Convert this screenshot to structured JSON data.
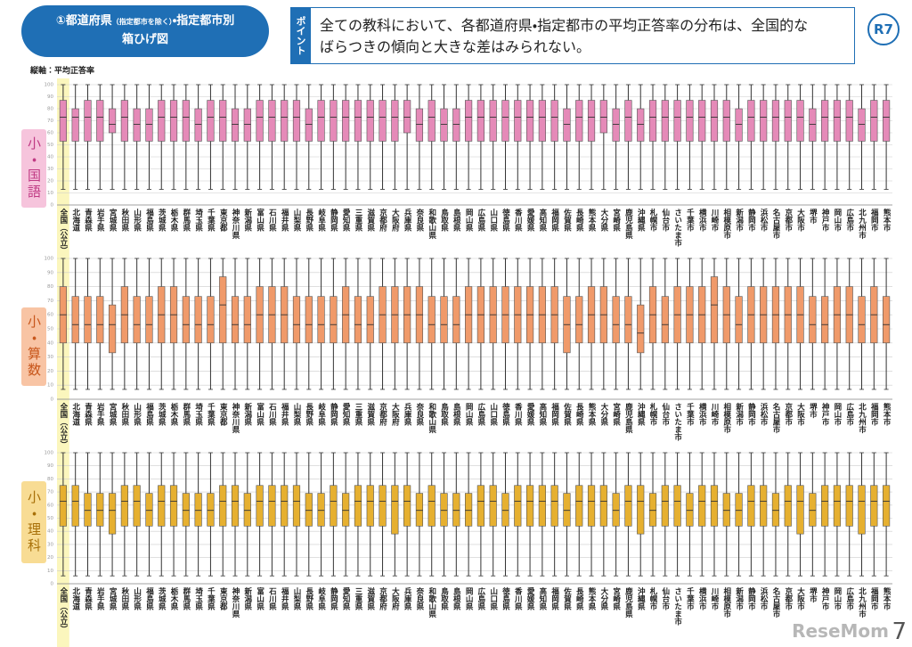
{
  "header": {
    "title_parts": [
      "①都道府県",
      "（指定都市を除く）",
      "・指定都市別"
    ],
    "title_line2": "箱ひげ図",
    "point_tag": "ポイント",
    "point_text": [
      "全ての教科において、各都道府県・指定都市の平均正答率の分布は、全国的な",
      "ばらつきの傾向と大きな差はみられない。"
    ],
    "badge": "R7"
  },
  "y_axis_label": "縦軸：平均正答率",
  "page_number": "7",
  "watermark": "ReseMom",
  "chart_data": [
    {
      "type": "box",
      "label": "小・国語",
      "color": "#e58ab8",
      "categories": [
        "全国（公立）",
        "北海道",
        "青森県",
        "岩手県",
        "宮城県",
        "秋田県",
        "山形県",
        "福島県",
        "茨城県",
        "栃木県",
        "群馬県",
        "埼玉県",
        "千葉県",
        "東京都",
        "神奈川県",
        "新潟県",
        "富山県",
        "石川県",
        "福井県",
        "山梨県",
        "長野県",
        "岐阜県",
        "静岡県",
        "愛知県",
        "三重県",
        "滋賀県",
        "京都府",
        "大阪府",
        "兵庫県",
        "奈良県",
        "和歌山県",
        "鳥取県",
        "島根県",
        "岡山県",
        "広島県",
        "山口県",
        "徳島県",
        "香川県",
        "愛媛県",
        "高知県",
        "福岡県",
        "佐賀県",
        "長崎県",
        "熊本県",
        "大分県",
        "宮崎県",
        "鹿児島県",
        "沖縄県",
        "札幌市",
        "仙台市",
        "さいたま市",
        "千葉市",
        "横浜市",
        "川崎市",
        "相模原市",
        "新潟市",
        "静岡市",
        "浜松市",
        "名古屋市",
        "京都市",
        "大阪市",
        "堺市",
        "神戸市",
        "岡山市",
        "広島市",
        "北九州市",
        "福岡市",
        "熊本市"
      ],
      "min": [
        13,
        13,
        13,
        13,
        13,
        13,
        13,
        13,
        13,
        13,
        13,
        13,
        13,
        13,
        13,
        13,
        13,
        13,
        13,
        13,
        13,
        13,
        13,
        13,
        13,
        13,
        13,
        13,
        13,
        13,
        13,
        13,
        13,
        13,
        13,
        13,
        13,
        13,
        13,
        13,
        13,
        13,
        13,
        13,
        13,
        13,
        13,
        13,
        13,
        13,
        13,
        13,
        13,
        13,
        13,
        13,
        13,
        13,
        13,
        13,
        13,
        13,
        13,
        13,
        13,
        13,
        13,
        13
      ],
      "q1": [
        53,
        53,
        53,
        53,
        60,
        53,
        53,
        53,
        53,
        53,
        53,
        53,
        53,
        53,
        53,
        53,
        53,
        53,
        53,
        53,
        53,
        53,
        53,
        53,
        53,
        53,
        53,
        53,
        60,
        53,
        53,
        53,
        53,
        53,
        53,
        53,
        53,
        53,
        53,
        53,
        53,
        53,
        53,
        53,
        60,
        53,
        53,
        53,
        53,
        53,
        53,
        53,
        53,
        53,
        53,
        53,
        53,
        53,
        53,
        53,
        53,
        53,
        53,
        53,
        53,
        53,
        53,
        53
      ],
      "median": [
        73,
        73,
        73,
        73,
        67,
        73,
        67,
        67,
        73,
        73,
        73,
        67,
        73,
        73,
        67,
        67,
        73,
        73,
        73,
        73,
        67,
        73,
        73,
        73,
        73,
        73,
        73,
        73,
        73,
        67,
        73,
        67,
        67,
        73,
        73,
        73,
        73,
        73,
        73,
        73,
        73,
        67,
        73,
        73,
        73,
        67,
        73,
        67,
        73,
        73,
        73,
        73,
        73,
        73,
        73,
        67,
        73,
        73,
        73,
        73,
        73,
        67,
        73,
        73,
        73,
        67,
        73,
        73
      ],
      "q3": [
        87,
        80,
        87,
        87,
        80,
        87,
        80,
        80,
        87,
        87,
        87,
        80,
        87,
        87,
        80,
        80,
        87,
        87,
        87,
        87,
        80,
        87,
        87,
        87,
        87,
        87,
        87,
        87,
        87,
        80,
        87,
        80,
        80,
        87,
        87,
        87,
        87,
        87,
        87,
        87,
        87,
        80,
        87,
        87,
        87,
        80,
        87,
        80,
        87,
        87,
        87,
        87,
        87,
        87,
        87,
        80,
        87,
        87,
        87,
        87,
        87,
        80,
        87,
        87,
        87,
        80,
        87,
        87
      ],
      "max": [
        100,
        100,
        100,
        100,
        100,
        100,
        100,
        100,
        100,
        100,
        100,
        100,
        100,
        100,
        100,
        100,
        100,
        100,
        100,
        100,
        100,
        100,
        100,
        100,
        100,
        100,
        100,
        100,
        100,
        100,
        100,
        100,
        100,
        100,
        100,
        100,
        100,
        100,
        100,
        100,
        100,
        100,
        100,
        100,
        100,
        100,
        100,
        100,
        100,
        100,
        100,
        100,
        100,
        100,
        100,
        100,
        100,
        100,
        100,
        100,
        100,
        100,
        100,
        100,
        100,
        100,
        100,
        100
      ],
      "ylim": [
        0,
        100
      ],
      "yticks": [
        0,
        10,
        20,
        30,
        40,
        50,
        60,
        70,
        80,
        90,
        100
      ],
      "grid": true
    },
    {
      "type": "box",
      "label": "小・算数",
      "color": "#f09a6a",
      "categories": [
        "全国（公立）",
        "北海道",
        "青森県",
        "岩手県",
        "宮城県",
        "秋田県",
        "山形県",
        "福島県",
        "茨城県",
        "栃木県",
        "群馬県",
        "埼玉県",
        "千葉県",
        "東京都",
        "神奈川県",
        "新潟県",
        "富山県",
        "石川県",
        "福井県",
        "山梨県",
        "長野県",
        "岐阜県",
        "静岡県",
        "愛知県",
        "三重県",
        "滋賀県",
        "京都府",
        "大阪府",
        "兵庫県",
        "奈良県",
        "和歌山県",
        "鳥取県",
        "島根県",
        "岡山県",
        "広島県",
        "山口県",
        "徳島県",
        "香川県",
        "愛媛県",
        "高知県",
        "福岡県",
        "佐賀県",
        "長崎県",
        "熊本県",
        "大分県",
        "宮崎県",
        "鹿児島県",
        "沖縄県",
        "札幌市",
        "仙台市",
        "さいたま市",
        "千葉市",
        "横浜市",
        "川崎市",
        "相模原市",
        "新潟市",
        "静岡市",
        "浜松市",
        "名古屋市",
        "京都市",
        "大阪市",
        "堺市",
        "神戸市",
        "岡山市",
        "広島市",
        "北九州市",
        "福岡市",
        "熊本市"
      ],
      "min": [
        7,
        7,
        7,
        7,
        7,
        7,
        7,
        7,
        7,
        7,
        7,
        7,
        7,
        7,
        7,
        7,
        7,
        7,
        7,
        7,
        7,
        7,
        7,
        7,
        7,
        7,
        7,
        7,
        7,
        7,
        7,
        7,
        7,
        7,
        7,
        7,
        7,
        7,
        7,
        7,
        7,
        7,
        7,
        7,
        7,
        7,
        7,
        7,
        7,
        7,
        7,
        7,
        7,
        7,
        7,
        7,
        7,
        7,
        7,
        7,
        7,
        7,
        7,
        7,
        7,
        7,
        7,
        7
      ],
      "q1": [
        40,
        40,
        40,
        40,
        33,
        40,
        40,
        40,
        40,
        40,
        40,
        40,
        40,
        40,
        40,
        40,
        40,
        40,
        40,
        40,
        40,
        40,
        40,
        40,
        40,
        40,
        40,
        40,
        40,
        40,
        40,
        40,
        40,
        40,
        40,
        40,
        40,
        40,
        40,
        40,
        40,
        33,
        40,
        40,
        40,
        40,
        40,
        33,
        40,
        40,
        40,
        40,
        40,
        40,
        40,
        40,
        40,
        40,
        40,
        40,
        40,
        40,
        40,
        40,
        40,
        40,
        40,
        40
      ],
      "median": [
        60,
        53,
        53,
        53,
        53,
        60,
        53,
        53,
        60,
        60,
        53,
        53,
        53,
        67,
        53,
        53,
        60,
        60,
        60,
        53,
        53,
        53,
        53,
        60,
        53,
        53,
        60,
        60,
        60,
        60,
        53,
        53,
        53,
        60,
        60,
        60,
        60,
        60,
        60,
        60,
        60,
        53,
        53,
        60,
        60,
        53,
        53,
        47,
        60,
        53,
        60,
        60,
        60,
        67,
        60,
        53,
        60,
        60,
        60,
        60,
        60,
        53,
        53,
        60,
        60,
        53,
        60,
        53
      ],
      "q3": [
        80,
        73,
        73,
        73,
        67,
        80,
        73,
        73,
        80,
        80,
        73,
        73,
        73,
        87,
        73,
        73,
        80,
        80,
        80,
        73,
        73,
        73,
        73,
        80,
        73,
        73,
        80,
        80,
        80,
        80,
        73,
        73,
        73,
        80,
        80,
        80,
        80,
        80,
        80,
        80,
        80,
        73,
        73,
        80,
        80,
        73,
        73,
        67,
        80,
        73,
        80,
        80,
        80,
        87,
        80,
        73,
        80,
        80,
        80,
        80,
        80,
        73,
        73,
        80,
        80,
        73,
        80,
        73
      ],
      "max": [
        100,
        100,
        100,
        100,
        100,
        100,
        100,
        100,
        100,
        100,
        100,
        100,
        100,
        100,
        100,
        100,
        100,
        100,
        100,
        100,
        100,
        100,
        100,
        100,
        100,
        100,
        100,
        100,
        100,
        100,
        100,
        100,
        100,
        100,
        100,
        100,
        100,
        100,
        100,
        100,
        100,
        100,
        100,
        100,
        100,
        100,
        100,
        100,
        100,
        100,
        100,
        100,
        100,
        100,
        100,
        100,
        100,
        100,
        100,
        100,
        100,
        100,
        100,
        100,
        100,
        100,
        100,
        100
      ],
      "ylim": [
        0,
        100
      ],
      "yticks": [
        0,
        10,
        20,
        30,
        40,
        50,
        60,
        70,
        80,
        90,
        100
      ],
      "grid": true
    },
    {
      "type": "box",
      "label": "小・理科",
      "color": "#e6b030",
      "categories": [
        "全国（公立）",
        "北海道",
        "青森県",
        "岩手県",
        "宮城県",
        "秋田県",
        "山形県",
        "福島県",
        "茨城県",
        "栃木県",
        "群馬県",
        "埼玉県",
        "千葉県",
        "東京都",
        "神奈川県",
        "新潟県",
        "富山県",
        "石川県",
        "福井県",
        "山梨県",
        "長野県",
        "岐阜県",
        "静岡県",
        "愛知県",
        "三重県",
        "滋賀県",
        "京都府",
        "大阪府",
        "兵庫県",
        "奈良県",
        "和歌山県",
        "鳥取県",
        "島根県",
        "岡山県",
        "広島県",
        "山口県",
        "徳島県",
        "香川県",
        "愛媛県",
        "高知県",
        "福岡県",
        "佐賀県",
        "長崎県",
        "熊本県",
        "大分県",
        "宮崎県",
        "鹿児島県",
        "沖縄県",
        "札幌市",
        "仙台市",
        "さいたま市",
        "千葉市",
        "横浜市",
        "川崎市",
        "相模原市",
        "新潟市",
        "静岡市",
        "浜松市",
        "名古屋市",
        "京都市",
        "大阪市",
        "堺市",
        "神戸市",
        "岡山市",
        "広島市",
        "北九州市",
        "福岡市",
        "熊本市"
      ],
      "min": [
        6,
        6,
        6,
        6,
        6,
        6,
        6,
        6,
        6,
        6,
        6,
        6,
        6,
        6,
        6,
        6,
        6,
        6,
        6,
        6,
        6,
        6,
        6,
        6,
        6,
        6,
        6,
        6,
        6,
        6,
        6,
        6,
        6,
        6,
        6,
        6,
        6,
        6,
        6,
        6,
        6,
        6,
        6,
        6,
        6,
        6,
        6,
        6,
        6,
        6,
        6,
        6,
        6,
        6,
        6,
        6,
        6,
        6,
        6,
        6,
        6,
        6,
        6,
        6,
        6,
        6,
        6,
        6
      ],
      "q1": [
        44,
        44,
        44,
        44,
        38,
        44,
        44,
        44,
        44,
        44,
        44,
        44,
        44,
        44,
        44,
        44,
        44,
        44,
        44,
        44,
        44,
        44,
        44,
        44,
        44,
        44,
        44,
        38,
        44,
        44,
        44,
        44,
        44,
        44,
        44,
        44,
        44,
        44,
        44,
        44,
        44,
        44,
        44,
        44,
        44,
        44,
        44,
        38,
        44,
        44,
        44,
        44,
        44,
        44,
        44,
        44,
        44,
        44,
        44,
        44,
        38,
        44,
        44,
        44,
        44,
        38,
        44,
        44
      ],
      "median": [
        63,
        63,
        56,
        56,
        56,
        63,
        63,
        56,
        63,
        63,
        56,
        56,
        56,
        63,
        63,
        56,
        63,
        63,
        63,
        63,
        56,
        56,
        63,
        56,
        63,
        63,
        63,
        63,
        63,
        56,
        63,
        56,
        56,
        56,
        63,
        63,
        56,
        63,
        63,
        63,
        63,
        56,
        63,
        63,
        63,
        56,
        63,
        63,
        56,
        63,
        63,
        56,
        63,
        63,
        56,
        56,
        63,
        63,
        56,
        63,
        63,
        56,
        63,
        63,
        63,
        63,
        63,
        63
      ],
      "q3": [
        75,
        75,
        69,
        69,
        69,
        75,
        75,
        69,
        75,
        75,
        69,
        69,
        69,
        75,
        75,
        69,
        75,
        75,
        75,
        75,
        69,
        69,
        75,
        69,
        75,
        75,
        75,
        75,
        75,
        69,
        75,
        69,
        69,
        69,
        75,
        75,
        69,
        75,
        75,
        75,
        75,
        69,
        75,
        75,
        75,
        69,
        75,
        75,
        69,
        75,
        75,
        69,
        75,
        75,
        69,
        69,
        75,
        75,
        69,
        75,
        75,
        69,
        75,
        75,
        75,
        75,
        75,
        75
      ],
      "max": [
        100,
        100,
        100,
        100,
        100,
        100,
        100,
        100,
        100,
        100,
        100,
        100,
        100,
        100,
        100,
        100,
        100,
        100,
        100,
        100,
        100,
        100,
        100,
        100,
        100,
        100,
        100,
        100,
        100,
        100,
        100,
        100,
        100,
        100,
        100,
        100,
        100,
        100,
        100,
        100,
        100,
        100,
        100,
        100,
        100,
        100,
        100,
        100,
        100,
        100,
        100,
        100,
        100,
        100,
        100,
        100,
        100,
        100,
        100,
        100,
        100,
        100,
        100,
        100,
        100,
        100,
        100,
        100
      ],
      "ylim": [
        0,
        100
      ],
      "yticks": [
        0,
        10,
        20,
        30,
        40,
        50,
        60,
        70,
        80,
        90,
        100
      ],
      "grid": true
    }
  ]
}
